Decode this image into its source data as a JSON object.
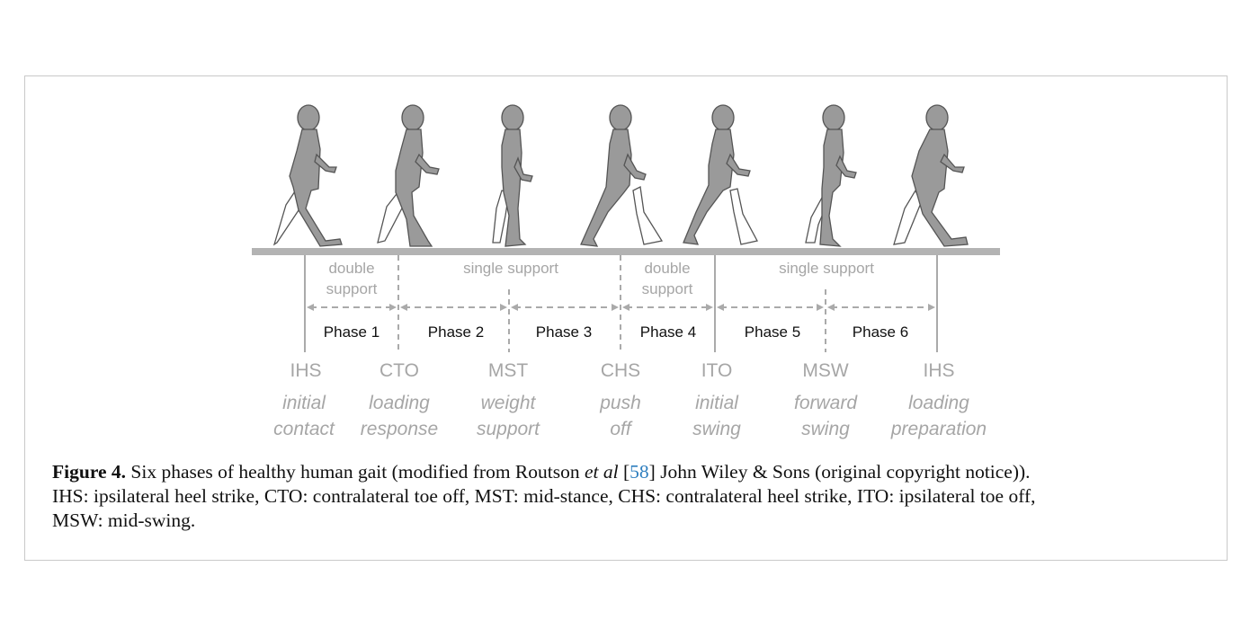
{
  "support_labels": [
    {
      "line1": "double",
      "line2": "support"
    },
    {
      "line1": "single support"
    },
    {
      "line1": "double",
      "line2": "support"
    },
    {
      "line1": "single support"
    }
  ],
  "phases": [
    "Phase 1",
    "Phase 2",
    "Phase 3",
    "Phase 4",
    "Phase 5",
    "Phase 6"
  ],
  "events": [
    {
      "abbr": "IHS",
      "line1": "initial",
      "line2": "contact"
    },
    {
      "abbr": "CTO",
      "line1": "loading",
      "line2": "response"
    },
    {
      "abbr": "MST",
      "line1": "weight",
      "line2": "support"
    },
    {
      "abbr": "CHS",
      "line1": "push",
      "line2": "off"
    },
    {
      "abbr": "ITO",
      "line1": "initial",
      "line2": "swing"
    },
    {
      "abbr": "MSW",
      "line1": "forward",
      "line2": "swing"
    },
    {
      "abbr": "IHS",
      "line1": "loading",
      "line2": "preparation"
    }
  ],
  "caption": {
    "label": "Figure 4.",
    "text_a": " Six phases of healthy human gait (modified from Routson ",
    "et_al": "et al",
    "ref_open": " [",
    "ref": "58",
    "ref_close": "]",
    "text_b": " John Wiley & Sons (original copyright notice)).",
    "line2": "IHS: ipsilateral heel strike, CTO: contralateral toe off, MST: mid-stance, CHS: contralateral heel strike, ITO: ipsilateral toe off,",
    "line3": "MSW: mid-swing."
  },
  "colors": {
    "figure_gray": "#9a9a9a",
    "label_gray": "#a6a6a6",
    "ground": "#b3b3b3"
  }
}
